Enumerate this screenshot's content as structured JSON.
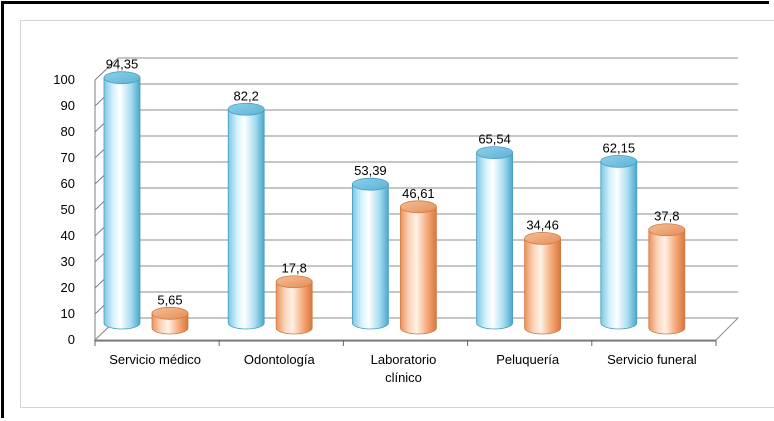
{
  "chart_data": {
    "type": "bar",
    "categories": [
      "Servicio médico",
      "Odontología",
      "Laboratorio clínico",
      "Peluquería",
      "Servicio funeral"
    ],
    "series": [
      {
        "values": [
          94.35,
          82.2,
          53.39,
          65.54,
          62.15
        ],
        "value_labels": [
          "94,35",
          "82,2",
          "53,39",
          "65,54",
          "62,15"
        ]
      },
      {
        "values": [
          5.65,
          17.8,
          46.61,
          34.46,
          37.8
        ],
        "value_labels": [
          "5,65",
          "17,8",
          "46,61",
          "34,46",
          "37,8"
        ]
      }
    ],
    "yticks": [
      "0",
      "10",
      "20",
      "30",
      "40",
      "50",
      "60",
      "70",
      "80",
      "90",
      "100"
    ],
    "ylim": [
      0,
      100
    ],
    "grid": true,
    "style": "3d-cylinder",
    "colors": [
      "#a8dcf0",
      "#f3a878"
    ]
  }
}
